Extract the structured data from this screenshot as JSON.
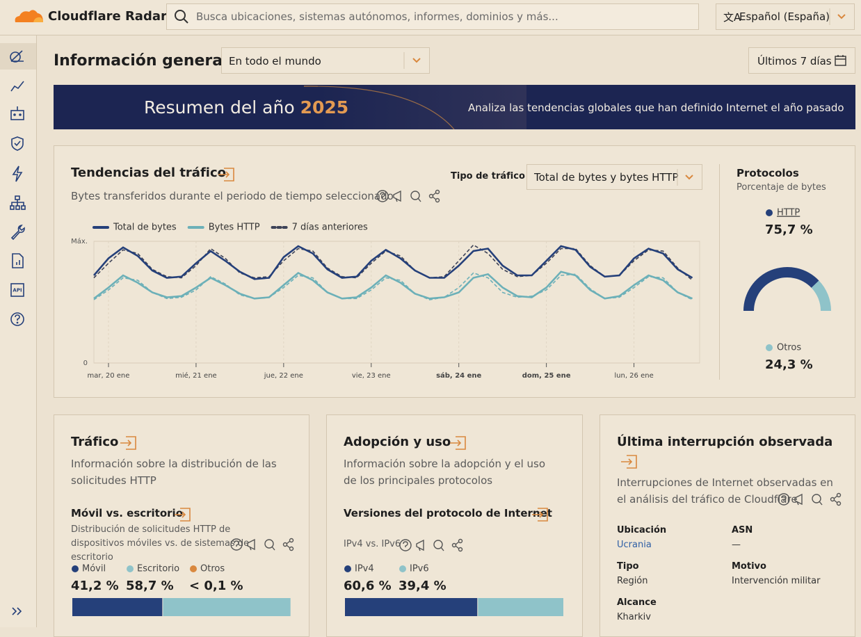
{
  "header": {
    "brand": "Cloudflare Radar",
    "search_placeholder": "Busca ubicaciones, sistemas autónomos, informes, dominios y más...",
    "language": "Español (España)"
  },
  "overview": {
    "title": "Información general",
    "location": "En todo el mundo",
    "period": "Últimos 7 días"
  },
  "banner": {
    "title": "Resumen del año",
    "year": "2025",
    "text": "Analiza las tendencias globales que han definido Internet el año pasado"
  },
  "traffic_trends": {
    "title": "Tendencias del tráfico",
    "subtitle": "Bytes transferidos durante el periodo de tiempo seleccionado",
    "filter_label": "Tipo de tráfico",
    "filter_value": "Total de bytes y bytes HTTP"
  },
  "traffic_card": {
    "title": "Tráfico",
    "description": "Información sobre la distribución de las solicitudes HTTP"
  },
  "adoption_card": {
    "title": "Adopción y uso",
    "description": "Información sobre la adopción y el uso de los principales protocolos"
  },
  "outage_card": {
    "title": "Última interrupción observada",
    "description": "Interrupciones de Internet observadas en el análisis del tráfico de Cloudflare",
    "fields": [
      {
        "label": "Ubicación",
        "value": "Ucrania"
      },
      {
        "label": "ASN",
        "value": "—"
      },
      {
        "label": "Tipo",
        "value": "Región"
      },
      {
        "label": "Motivo",
        "value": "Intervención militar"
      },
      {
        "label": "Alcance",
        "value": "Kharkiv"
      }
    ]
  },
  "chart_data": [
    {
      "type": "line",
      "x": [
        -4,
        0,
        4,
        8,
        12,
        16,
        20,
        24,
        28,
        32,
        36,
        40,
        44,
        48,
        52,
        56,
        60,
        64,
        68,
        72,
        76,
        80,
        84,
        88,
        92,
        96,
        100,
        104,
        108,
        112,
        116,
        120,
        124,
        128,
        132,
        136,
        140,
        144,
        148,
        152,
        156,
        160
      ],
      "xlim": [
        -4,
        162
      ],
      "xticks": [
        {
          "value": 0,
          "label": "mar, 20 ene"
        },
        {
          "value": 24,
          "label": "mié, 21 ene"
        },
        {
          "value": 48,
          "label": "jue, 22 ene"
        },
        {
          "value": 72,
          "label": "vie, 23 ene"
        },
        {
          "value": 96,
          "label": "sáb, 24 ene",
          "bold": true
        },
        {
          "value": 120,
          "label": "dom, 25 ene",
          "bold": true
        },
        {
          "value": 144,
          "label": "lun, 26 ene"
        }
      ],
      "ylim": [
        0,
        100
      ],
      "yticks": [
        0,
        {
          "value": 100,
          "label": "Máx."
        }
      ],
      "grid": true,
      "series": [
        {
          "name": "Total de bytes",
          "color": "#25407a",
          "values": [
            72,
            86,
            95,
            88,
            76,
            70,
            71,
            82,
            92,
            84,
            75,
            69,
            70,
            87,
            96,
            90,
            77,
            70,
            71,
            84,
            93,
            86,
            76,
            70,
            70,
            80,
            92,
            94,
            80,
            72,
            72,
            84,
            96,
            93,
            79,
            71,
            72,
            86,
            94,
            90,
            77,
            70
          ]
        },
        {
          "name": "Bytes HTTP",
          "color": "#6cb0b8",
          "values": [
            53,
            62,
            72,
            66,
            58,
            54,
            55,
            62,
            70,
            64,
            57,
            53,
            54,
            64,
            74,
            68,
            58,
            53,
            54,
            62,
            72,
            66,
            57,
            53,
            54,
            58,
            70,
            73,
            62,
            55,
            54,
            62,
            75,
            72,
            60,
            53,
            55,
            64,
            72,
            68,
            58,
            53
          ]
        },
        {
          "name": "7 días anteriores",
          "color": "#3d4257",
          "http_color": "#6cb0b8",
          "dashed": true,
          "values": [
            70,
            82,
            93,
            90,
            77,
            71,
            70,
            80,
            94,
            86,
            74,
            70,
            71,
            84,
            94,
            92,
            78,
            71,
            70,
            82,
            92,
            88,
            76,
            70,
            71,
            84,
            97,
            90,
            77,
            71,
            72,
            82,
            94,
            94,
            80,
            71,
            72,
            84,
            93,
            92,
            78,
            68
          ],
          "http_values": [
            52,
            60,
            70,
            68,
            58,
            53,
            54,
            60,
            71,
            65,
            56,
            53,
            54,
            62,
            72,
            70,
            58,
            53,
            53,
            60,
            70,
            68,
            57,
            52,
            54,
            62,
            74,
            70,
            58,
            54,
            55,
            60,
            72,
            73,
            61,
            53,
            54,
            62,
            71,
            70,
            58,
            52
          ]
        }
      ]
    },
    {
      "type": "pie",
      "title": "Protocolos",
      "subtitle": "Porcentaje de bytes",
      "categories": [
        "HTTP",
        "Otros"
      ],
      "values": [
        75.7,
        24.3
      ],
      "value_labels": [
        "75,7 %",
        "24,3 %"
      ],
      "colors": [
        "#25407a",
        "#8fc3c9"
      ]
    },
    {
      "type": "bar",
      "title": "Móvil vs. escritorio",
      "subtitle": "Distribución de solicitudes HTTP de dispositivos móviles vs. de sistemas de escritorio",
      "categories": [
        "Móvil",
        "Escritorio",
        "Otros"
      ],
      "values": [
        41.2,
        58.7,
        0.1
      ],
      "value_labels": [
        "41,2 %",
        "58,7 %",
        "< 0,1 %"
      ],
      "colors": [
        "#25407a",
        "#8fc3c9",
        "#d9883e"
      ]
    },
    {
      "type": "bar",
      "title": "Versiones del protocolo de Internet",
      "subtitle": "IPv4 vs. IPv6",
      "categories": [
        "IPv4",
        "IPv6"
      ],
      "values": [
        60.6,
        39.4
      ],
      "value_labels": [
        "60,6 %",
        "39,4 %"
      ],
      "colors": [
        "#25407a",
        "#8fc3c9"
      ]
    }
  ]
}
